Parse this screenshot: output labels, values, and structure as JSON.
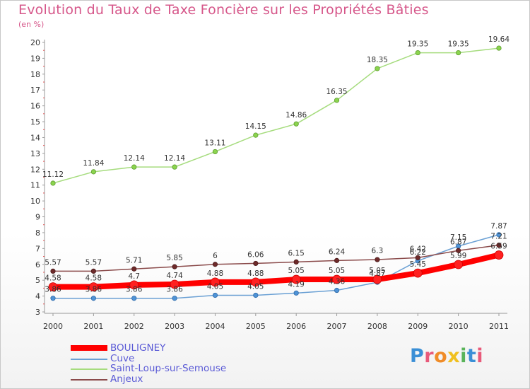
{
  "chart_data": {
    "type": "line",
    "title": "Evolution du Taux de Taxe Foncière sur les Propriétés Bâties",
    "unit_label": "(en %)",
    "xlabel": "",
    "ylabel": "",
    "categories": [
      "2000",
      "2001",
      "2002",
      "2003",
      "2004",
      "2005",
      "2006",
      "2007",
      "2008",
      "2009",
      "2010",
      "2011"
    ],
    "ylim": [
      3,
      20
    ],
    "yticks": [
      3,
      4,
      5,
      6,
      7,
      8,
      9,
      10,
      11,
      12,
      13,
      14,
      15,
      16,
      17,
      18,
      19,
      20
    ],
    "grid": false,
    "legend_position": "bottom-left",
    "series": [
      {
        "name": "BOULIGNEY",
        "color": "#ff0000",
        "labels": [
          "4.58",
          "4.58",
          "4.7",
          "4.74",
          "4.88",
          "4.88",
          "5.05",
          "5.05",
          "5.05",
          "5.45",
          "5.99",
          "6.59"
        ],
        "values": [
          4.58,
          4.58,
          4.7,
          4.74,
          4.88,
          4.88,
          5.05,
          5.05,
          5.05,
          5.45,
          5.99,
          6.59
        ]
      },
      {
        "name": "Cuve",
        "color": "#6aa0d4",
        "labels": [
          "3.86",
          "3.86",
          "3.86",
          "3.86",
          "4.05",
          "4.05",
          "4.19",
          "4.36",
          "4.87",
          "6.22",
          "7.15",
          "7.87"
        ],
        "values": [
          3.86,
          3.86,
          3.86,
          3.86,
          4.05,
          4.05,
          4.19,
          4.36,
          4.87,
          6.22,
          7.15,
          7.87
        ]
      },
      {
        "name": "Saint-Loup-sur-Semouse",
        "color": "#a6dc7e",
        "labels": [
          "11.12",
          "11.84",
          "12.14",
          "12.14",
          "13.11",
          "14.15",
          "14.86",
          "16.35",
          "18.35",
          "19.35",
          "19.35",
          "19.64"
        ],
        "values": [
          11.12,
          11.84,
          12.14,
          12.14,
          13.11,
          14.15,
          14.86,
          16.35,
          18.35,
          19.35,
          19.35,
          19.64
        ]
      },
      {
        "name": "Anjeux",
        "color": "#8a4a4a",
        "labels": [
          "5.57",
          "5.57",
          "5.71",
          "5.85",
          "6",
          "6.06",
          "6.15",
          "6.24",
          "6.3",
          "6.42",
          "6.87",
          "7.21"
        ],
        "values": [
          5.57,
          5.57,
          5.71,
          5.85,
          6.0,
          6.06,
          6.15,
          6.24,
          6.3,
          6.42,
          6.87,
          7.21
        ]
      }
    ]
  },
  "legend": {
    "items": [
      "BOULIGNEY",
      "Cuve",
      "Saint-Loup-sur-Semouse",
      "Anjeux"
    ]
  },
  "logo": {
    "letters": [
      "P",
      "r",
      "o",
      "x",
      "i",
      "t",
      "i"
    ]
  }
}
